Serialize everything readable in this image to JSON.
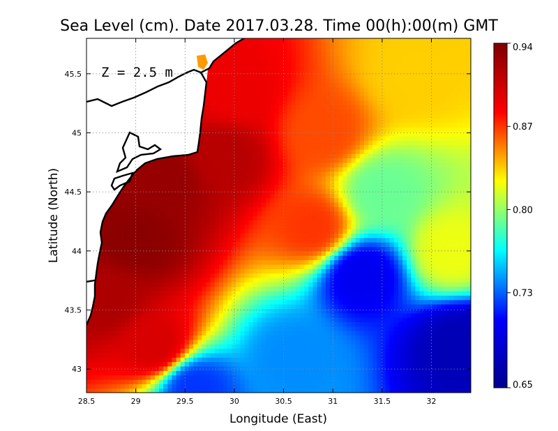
{
  "chart_data": {
    "type": "heatmap",
    "title": "Sea Level (cm). Date 2017.03.28. Time 00(h):00(m) GMT",
    "xlabel": "Longitude (East)",
    "ylabel": "Latitude (North)",
    "annotation": "Z = 2.5 m",
    "xlim": [
      28.5,
      32.4
    ],
    "ylim": [
      42.8,
      45.8
    ],
    "x_ticks": [
      "28.5",
      "29",
      "29.5",
      "30",
      "30.5",
      "31",
      "31.5",
      "32"
    ],
    "y_ticks": [
      "43",
      "43.5",
      "44",
      "44.5",
      "45",
      "45.5"
    ],
    "x_tick_values": [
      28.5,
      29,
      29.5,
      30,
      30.5,
      31,
      31.5,
      32
    ],
    "y_tick_values": [
      43,
      43.5,
      44,
      44.5,
      45,
      45.5
    ],
    "grid": true,
    "colorbar": {
      "min": 0.65,
      "max": 0.94,
      "ticks": [
        "0.94",
        "0.87",
        "0.80",
        "0.73",
        "0.65"
      ],
      "tick_values": [
        0.94,
        0.87,
        0.8,
        0.73,
        0.65
      ],
      "colormap": [
        "#00008f",
        "#0000ff",
        "#00ffff",
        "#ffff00",
        "#ff0000",
        "#800000"
      ]
    },
    "field_features": [
      {
        "lon": 29.0,
        "lat": 44.1,
        "value": 0.935
      },
      {
        "lon": 29.3,
        "lat": 44.6,
        "value": 0.93
      },
      {
        "lon": 28.7,
        "lat": 43.6,
        "value": 0.92
      },
      {
        "lon": 29.9,
        "lat": 44.8,
        "value": 0.915
      },
      {
        "lon": 30.0,
        "lat": 45.35,
        "value": 0.89
      },
      {
        "lon": 30.9,
        "lat": 45.0,
        "value": 0.865
      },
      {
        "lon": 31.8,
        "lat": 45.5,
        "value": 0.835
      },
      {
        "lon": 31.3,
        "lat": 43.8,
        "value": 0.7
      },
      {
        "lon": 32.3,
        "lat": 43.2,
        "value": 0.67
      },
      {
        "lon": 29.6,
        "lat": 42.85,
        "value": 0.72
      },
      {
        "lon": 30.6,
        "lat": 43.1,
        "value": 0.74
      },
      {
        "lon": 31.5,
        "lat": 44.5,
        "value": 0.79
      },
      {
        "lon": 32.2,
        "lat": 44.0,
        "value": 0.82
      },
      {
        "lon": 30.8,
        "lat": 44.2,
        "value": 0.87
      },
      {
        "lon": 29.2,
        "lat": 43.2,
        "value": 0.9
      }
    ]
  }
}
